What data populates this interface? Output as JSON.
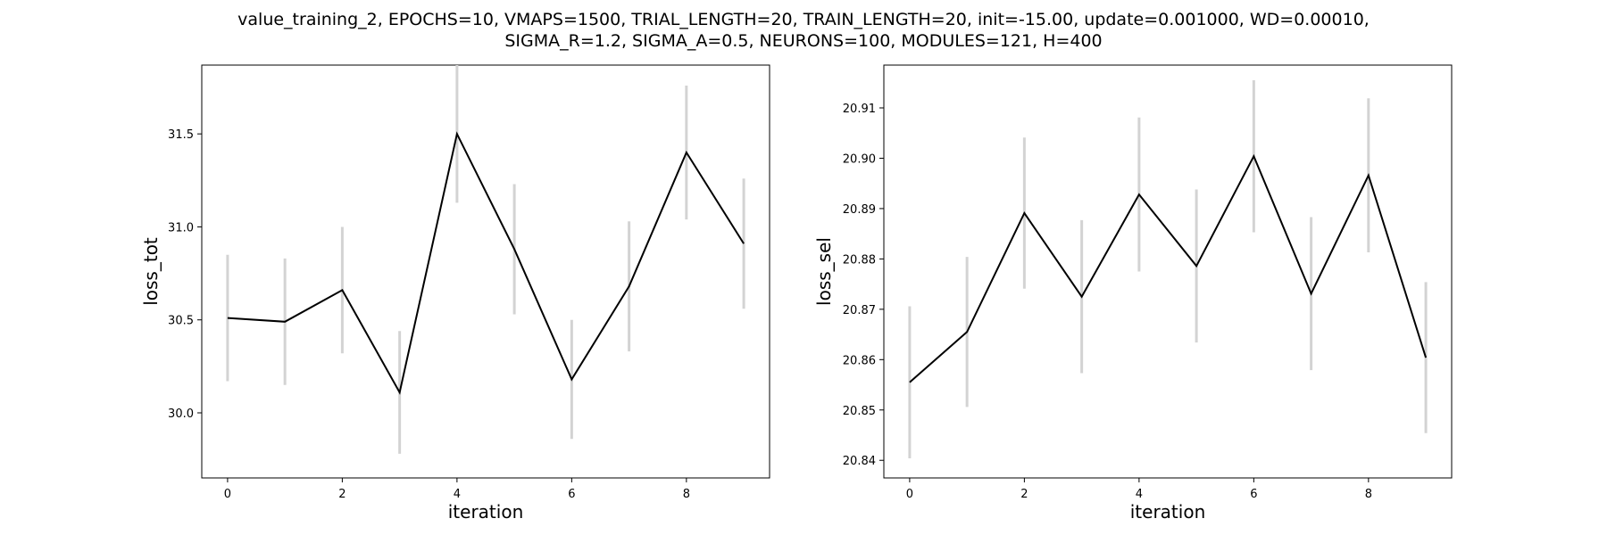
{
  "figure": {
    "title_line1": "value_training_2, EPOCHS=10, VMAPS=1500, TRIAL_LENGTH=20, TRAIN_LENGTH=20, init=-15.00, update=0.001000, WD=0.00010,",
    "title_line2": "SIGMA_R=1.2, SIGMA_A=0.5, NEURONS=100, MODULES=121, H=400"
  },
  "colors": {
    "line": "#000000",
    "error_bar": "#d3d3d3",
    "axes": "#000000",
    "background": "#ffffff"
  },
  "chart_data": [
    {
      "type": "line",
      "xlabel": "iteration",
      "ylabel": "loss_tot",
      "x": [
        0,
        1,
        2,
        3,
        4,
        5,
        6,
        7,
        8,
        9
      ],
      "series": [
        {
          "values": [
            30.51,
            30.49,
            30.66,
            30.11,
            31.5,
            30.88,
            30.18,
            30.68,
            31.4,
            30.91
          ],
          "error": [
            0.34,
            0.34,
            0.34,
            0.33,
            0.37,
            0.35,
            0.32,
            0.35,
            0.36,
            0.35
          ]
        }
      ],
      "xlim": [
        -0.45,
        9.45
      ],
      "ylim": [
        29.65,
        31.87
      ],
      "xticks": [
        0,
        2,
        4,
        6,
        8
      ],
      "xtick_labels": [
        "0",
        "2",
        "4",
        "6",
        "8"
      ],
      "yticks": [
        30.0,
        30.5,
        31.0,
        31.5
      ],
      "ytick_labels": [
        "30.0",
        "30.5",
        "31.0",
        "31.5"
      ],
      "grid": false,
      "legend": "none"
    },
    {
      "type": "line",
      "xlabel": "iteration",
      "ylabel": "loss_sel",
      "x": [
        0,
        1,
        2,
        3,
        4,
        5,
        6,
        7,
        8,
        9
      ],
      "series": [
        {
          "values": [
            20.8555,
            20.8655,
            20.8891,
            20.8725,
            20.8928,
            20.8786,
            20.9004,
            20.8731,
            20.8966,
            20.8604
          ],
          "error": [
            0.0151,
            0.0149,
            0.015,
            0.0152,
            0.0153,
            0.0152,
            0.0151,
            0.0152,
            0.0153,
            0.015
          ]
        }
      ],
      "xlim": [
        -0.45,
        9.45
      ],
      "ylim": [
        20.8365,
        20.9185
      ],
      "xticks": [
        0,
        2,
        4,
        6,
        8
      ],
      "xtick_labels": [
        "0",
        "2",
        "4",
        "6",
        "8"
      ],
      "yticks": [
        20.84,
        20.85,
        20.86,
        20.87,
        20.88,
        20.89,
        20.9,
        20.91
      ],
      "ytick_labels": [
        "20.84",
        "20.85",
        "20.86",
        "20.87",
        "20.88",
        "20.89",
        "20.90",
        "20.91"
      ],
      "grid": false,
      "legend": "none"
    }
  ]
}
